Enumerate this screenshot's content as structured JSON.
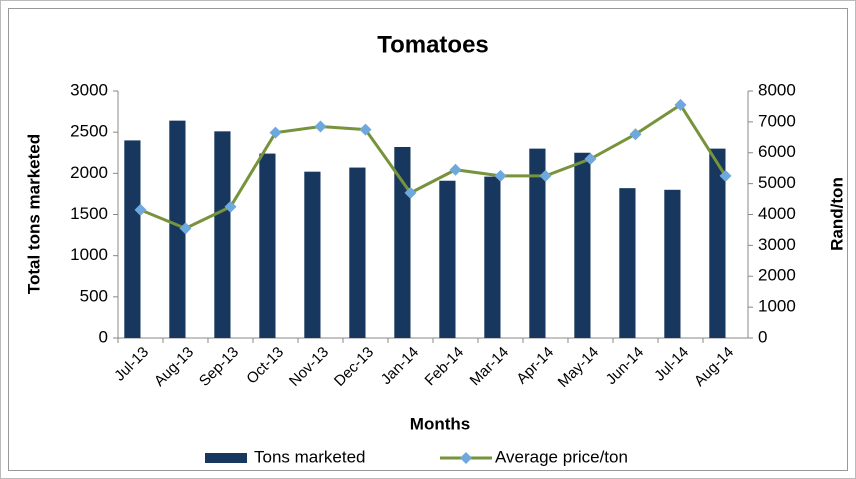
{
  "chart_data": {
    "type": "bar",
    "title": "Tomatoes",
    "categories": [
      "Jul-13",
      "Aug-13",
      "Sep-13",
      "Oct-13",
      "Nov-13",
      "Dec-13",
      "Jan-14",
      "Feb-14",
      "Mar-14",
      "Apr-14",
      "May-14",
      "Jun-14",
      "Jul-14",
      "Aug-14"
    ],
    "series": [
      {
        "name": "Tons marketed",
        "type": "bar",
        "color": "#17375e",
        "values": [
          2400,
          2640,
          2510,
          2240,
          2020,
          2070,
          2320,
          1910,
          1960,
          2300,
          2250,
          1820,
          1800,
          2300
        ]
      },
      {
        "name": "Average price/ton",
        "type": "line",
        "axis": "y2",
        "color": "#77933c",
        "marker_color": "#6fa8dc",
        "values": [
          4150,
          3550,
          4250,
          6650,
          6850,
          6750,
          4700,
          5450,
          5250,
          5250,
          5800,
          6600,
          7550,
          5250
        ]
      }
    ],
    "x_label": "Months",
    "y_label": "Total tons marketed",
    "y2_label": "Rand/ton",
    "ylim": [
      0,
      3000
    ],
    "yticks": [
      0,
      500,
      1000,
      1500,
      2000,
      2500,
      3000
    ],
    "y2lim": [
      0,
      8000
    ],
    "y2ticks": [
      0,
      1000,
      2000,
      3000,
      4000,
      5000,
      6000,
      7000,
      8000
    ],
    "grid": false,
    "legend": "bottom"
  }
}
